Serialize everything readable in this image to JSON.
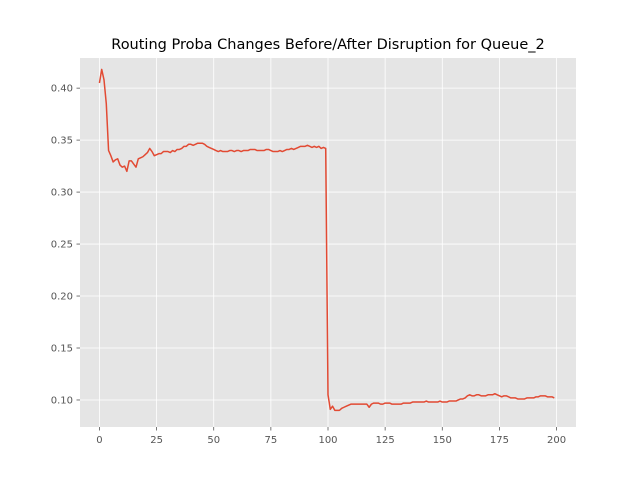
{
  "chart_data": {
    "type": "line",
    "title": "Routing Proba Changes Before/After Disruption for Queue_2",
    "xlabel": "",
    "ylabel": "",
    "xlim": [
      -8.5,
      208.5
    ],
    "ylim": [
      0.074,
      0.429
    ],
    "x_ticks": [
      0,
      25,
      50,
      75,
      100,
      125,
      150,
      175,
      200
    ],
    "y_ticks": [
      0.1,
      0.15,
      0.2,
      0.25,
      0.3,
      0.35,
      0.4
    ],
    "x_tick_labels": [
      "0",
      "25",
      "50",
      "75",
      "100",
      "125",
      "150",
      "175",
      "200"
    ],
    "y_tick_labels": [
      "0.10",
      "0.15",
      "0.20",
      "0.25",
      "0.30",
      "0.35",
      "0.40"
    ],
    "grid": true,
    "style": "ggplot",
    "colors": {
      "line": "#E24A33",
      "plot_bg": "#E5E5E5",
      "grid": "#FFFFFF",
      "tick": "#555555"
    },
    "series": [
      {
        "x": [
          0,
          1,
          2,
          3,
          4,
          5,
          6,
          7,
          8,
          9,
          10,
          11,
          12,
          13,
          14,
          15,
          16,
          17,
          18,
          19,
          20,
          21,
          22,
          23,
          24,
          25,
          26,
          27,
          28,
          29,
          30,
          31,
          32,
          33,
          34,
          35,
          36,
          37,
          38,
          39,
          40,
          41,
          42,
          43,
          44,
          45,
          46,
          47,
          48,
          49,
          50,
          51,
          52,
          53,
          54,
          55,
          56,
          57,
          58,
          59,
          60,
          61,
          62,
          63,
          64,
          65,
          66,
          67,
          68,
          69,
          70,
          71,
          72,
          73,
          74,
          75,
          76,
          77,
          78,
          79,
          80,
          81,
          82,
          83,
          84,
          85,
          86,
          87,
          88,
          89,
          90,
          91,
          92,
          93,
          94,
          95,
          96,
          97,
          98,
          99,
          100,
          101,
          102,
          103,
          104,
          105,
          106,
          107,
          108,
          109,
          110,
          111,
          112,
          113,
          114,
          115,
          116,
          117,
          118,
          119,
          120,
          121,
          122,
          123,
          124,
          125,
          126,
          127,
          128,
          129,
          130,
          131,
          132,
          133,
          134,
          135,
          136,
          137,
          138,
          139,
          140,
          141,
          142,
          143,
          144,
          145,
          146,
          147,
          148,
          149,
          150,
          151,
          152,
          153,
          154,
          155,
          156,
          157,
          158,
          159,
          160,
          161,
          162,
          163,
          164,
          165,
          166,
          167,
          168,
          169,
          170,
          171,
          172,
          173,
          174,
          175,
          176,
          177,
          178,
          179,
          180,
          181,
          182,
          183,
          184,
          185,
          186,
          187,
          188,
          189,
          190,
          191,
          192,
          193,
          194,
          195,
          196,
          197,
          198,
          199
        ],
        "y": [
          0.405,
          0.418,
          0.408,
          0.385,
          0.34,
          0.335,
          0.329,
          0.331,
          0.332,
          0.326,
          0.324,
          0.325,
          0.32,
          0.33,
          0.33,
          0.327,
          0.324,
          0.332,
          0.333,
          0.334,
          0.336,
          0.338,
          0.342,
          0.339,
          0.335,
          0.336,
          0.337,
          0.337,
          0.339,
          0.339,
          0.339,
          0.338,
          0.34,
          0.339,
          0.341,
          0.341,
          0.342,
          0.344,
          0.344,
          0.346,
          0.346,
          0.345,
          0.346,
          0.347,
          0.347,
          0.347,
          0.346,
          0.344,
          0.343,
          0.342,
          0.341,
          0.34,
          0.339,
          0.34,
          0.339,
          0.339,
          0.339,
          0.34,
          0.34,
          0.339,
          0.34,
          0.34,
          0.339,
          0.34,
          0.34,
          0.34,
          0.341,
          0.341,
          0.341,
          0.34,
          0.34,
          0.34,
          0.34,
          0.341,
          0.341,
          0.34,
          0.339,
          0.339,
          0.339,
          0.34,
          0.339,
          0.34,
          0.341,
          0.341,
          0.342,
          0.341,
          0.342,
          0.343,
          0.344,
          0.344,
          0.344,
          0.345,
          0.344,
          0.343,
          0.344,
          0.343,
          0.344,
          0.342,
          0.343,
          0.342,
          0.105,
          0.091,
          0.094,
          0.09,
          0.09,
          0.09,
          0.092,
          0.093,
          0.094,
          0.095,
          0.096,
          0.096,
          0.096,
          0.096,
          0.096,
          0.096,
          0.096,
          0.096,
          0.093,
          0.096,
          0.097,
          0.097,
          0.097,
          0.096,
          0.096,
          0.097,
          0.097,
          0.097,
          0.096,
          0.096,
          0.096,
          0.096,
          0.096,
          0.097,
          0.097,
          0.097,
          0.097,
          0.098,
          0.098,
          0.098,
          0.098,
          0.098,
          0.098,
          0.099,
          0.098,
          0.098,
          0.098,
          0.098,
          0.098,
          0.099,
          0.098,
          0.098,
          0.098,
          0.099,
          0.099,
          0.099,
          0.099,
          0.1,
          0.101,
          0.101,
          0.102,
          0.104,
          0.105,
          0.104,
          0.104,
          0.105,
          0.105,
          0.104,
          0.104,
          0.104,
          0.105,
          0.105,
          0.105,
          0.106,
          0.105,
          0.104,
          0.103,
          0.104,
          0.104,
          0.103,
          0.102,
          0.102,
          0.102,
          0.101,
          0.101,
          0.101,
          0.101,
          0.102,
          0.102,
          0.102,
          0.102,
          0.103,
          0.103,
          0.104,
          0.104,
          0.104,
          0.103,
          0.103,
          0.103,
          0.102
        ]
      }
    ]
  }
}
